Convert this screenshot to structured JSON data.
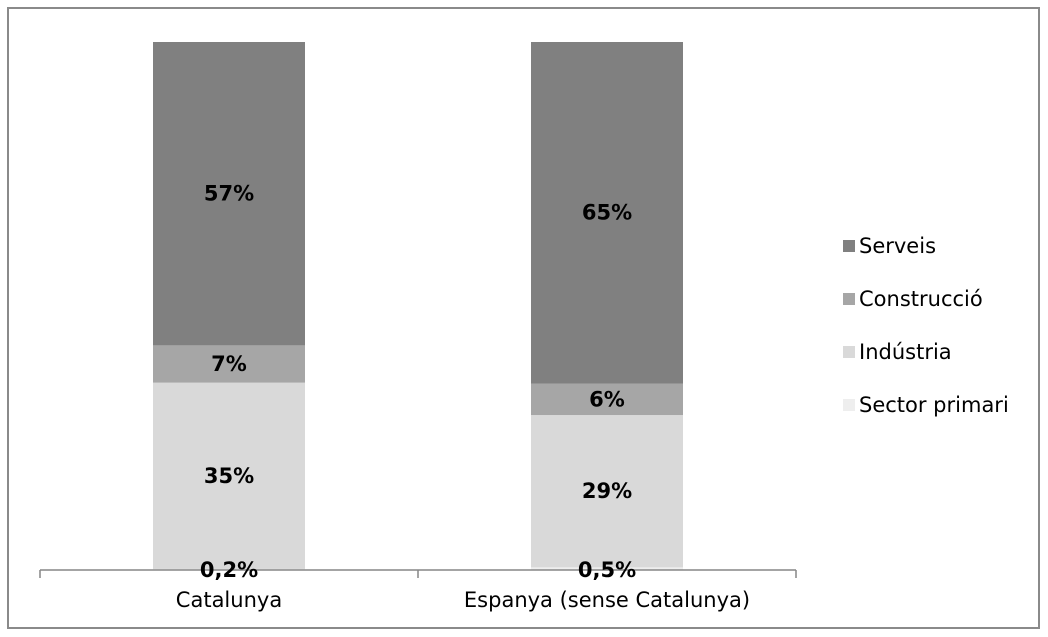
{
  "chart_data": {
    "type": "bar",
    "stacked": true,
    "normalized": true,
    "categories": [
      "Catalunya",
      "Espanya (sense Catalunya)"
    ],
    "series": [
      {
        "name": "Sector primari",
        "values": [
          0.2,
          0.5
        ],
        "labels": [
          "0,2%",
          "0,5%"
        ],
        "color": "#eeeeee"
      },
      {
        "name": "Indústria",
        "values": [
          35,
          29
        ],
        "labels": [
          "35%",
          "29%"
        ],
        "color": "#d9d9d9"
      },
      {
        "name": "Construcció",
        "values": [
          7,
          6
        ],
        "labels": [
          "7%",
          "6%"
        ],
        "color": "#a6a6a6"
      },
      {
        "name": "Serveis",
        "values": [
          57,
          65
        ],
        "labels": [
          "57%",
          "65%"
        ],
        "color": "#808080"
      }
    ],
    "legend_order": [
      "Serveis",
      "Construcció",
      "Indústria",
      "Sector primari"
    ],
    "legend_position": "right",
    "grid": false
  }
}
